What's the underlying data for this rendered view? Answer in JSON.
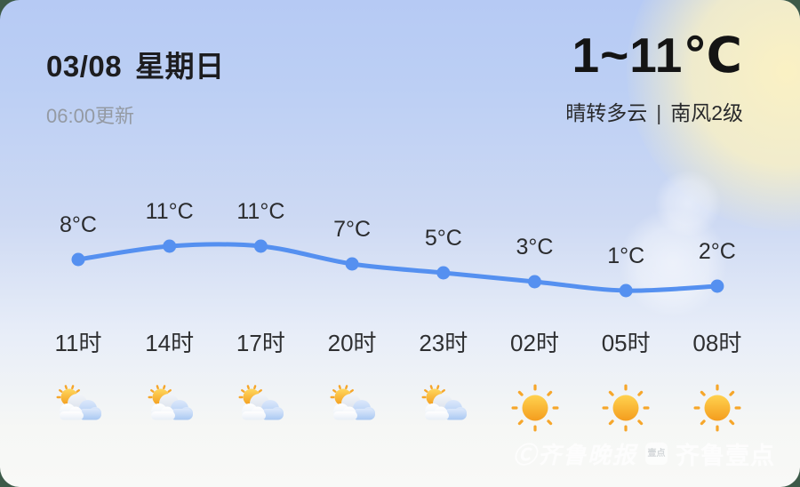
{
  "header": {
    "date": "03/08",
    "weekday": "星期日",
    "updated": "06:00更新",
    "temp_range": "1~11℃",
    "condition": "晴转多云",
    "separator": "|",
    "wind": "南风2级"
  },
  "chart_data": {
    "type": "line",
    "x": [
      "11时",
      "14时",
      "17时",
      "20时",
      "23时",
      "02时",
      "05时",
      "08时"
    ],
    "series": [
      {
        "name": "气温",
        "values": [
          8,
          11,
          11,
          7,
          5,
          3,
          1,
          2
        ]
      }
    ],
    "point_labels": [
      "8°C",
      "11°C",
      "11°C",
      "7°C",
      "5°C",
      "3°C",
      "1°C",
      "2°C"
    ],
    "unit": "°C",
    "ylim": [
      0,
      12
    ],
    "grid": false,
    "legend": "none",
    "line_color": "#5590f0",
    "icons": [
      "partly-cloudy",
      "partly-cloudy",
      "partly-cloudy",
      "partly-cloudy",
      "partly-cloudy",
      "sunny",
      "sunny",
      "sunny"
    ]
  },
  "watermark": {
    "copyright": "Ⓒ齐鲁晚报",
    "logo_text": "壹点",
    "brand": "齐鲁壹点"
  },
  "colors": {
    "accent_blue": "#5590f0",
    "sun_orange": "#f6a62a",
    "bg_top": "#b6caf4",
    "bg_bottom": "#f8f9f7",
    "page_outside": "#3d5a49"
  }
}
